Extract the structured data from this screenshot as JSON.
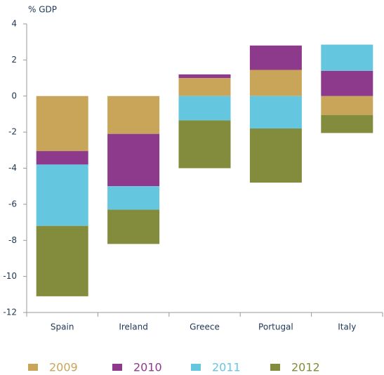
{
  "chart_data": {
    "type": "stacked_bar",
    "y_label": "% GDP",
    "categories": [
      "Spain",
      "Ireland",
      "Greece",
      "Portugal",
      "Italy"
    ],
    "series": [
      {
        "name": "2009",
        "color": "#c9a55a",
        "values": [
          -3.05,
          -2.1,
          1.0,
          1.45,
          -1.05
        ]
      },
      {
        "name": "2010",
        "color": "#8e3a8c",
        "values": [
          -0.75,
          -2.9,
          0.2,
          1.35,
          1.4
        ]
      },
      {
        "name": "2011",
        "color": "#65c6df",
        "values": [
          -3.4,
          -1.3,
          -1.35,
          -1.8,
          1.45
        ]
      },
      {
        "name": "2012",
        "color": "#838b3c",
        "values": [
          -3.9,
          -1.9,
          -2.65,
          -3.0,
          -1.0
        ]
      }
    ],
    "ylim": [
      -12,
      4
    ],
    "yticks": [
      -12,
      -10,
      -8,
      -6,
      -4,
      -2,
      0,
      2,
      4
    ]
  }
}
